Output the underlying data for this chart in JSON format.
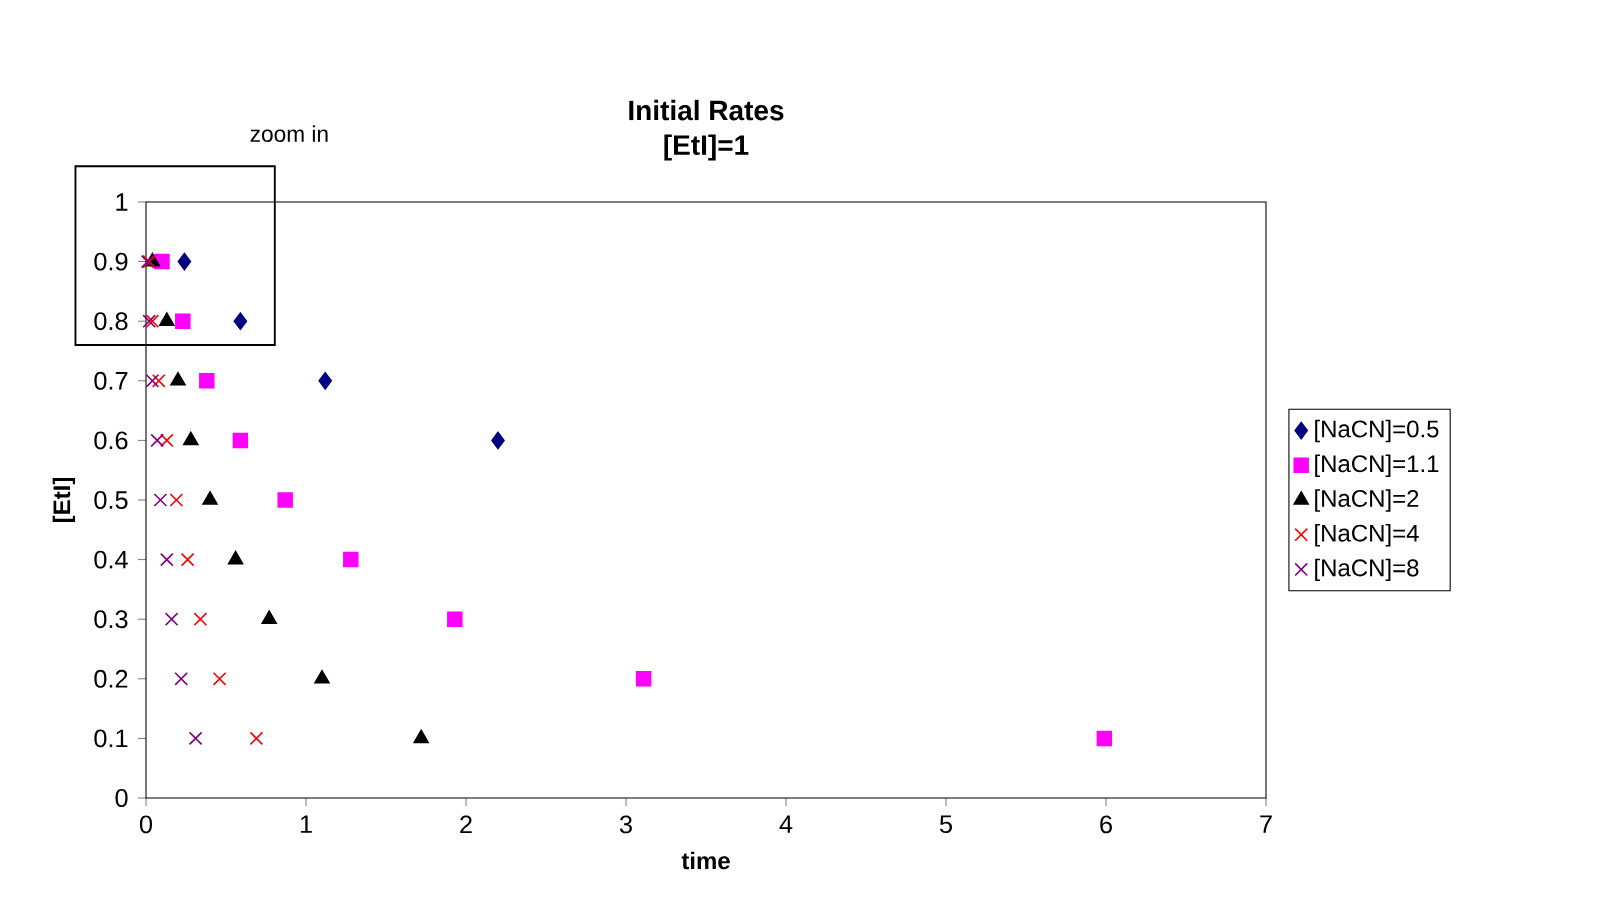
{
  "chart_data": {
    "type": "scatter",
    "title": "Initial Rates",
    "subtitle": "[EtI]=1",
    "xlabel": "time",
    "ylabel": "[EtI]",
    "annotations": [
      "zoom in"
    ],
    "xlim": [
      0,
      7
    ],
    "ylim": [
      0,
      1
    ],
    "xticks": [
      0,
      1,
      2,
      3,
      4,
      5,
      6,
      7
    ],
    "yticks": [
      0,
      0.1,
      0.2,
      0.3,
      0.4,
      0.5,
      0.6,
      0.7,
      0.8,
      0.9,
      1
    ],
    "grid": false,
    "legend": "right",
    "series": [
      {
        "name": "[NaCN]=0.5",
        "color": "#000080",
        "marker": "diamond",
        "x": [
          0.24,
          0.59,
          1.12,
          2.2
        ],
        "values": [
          0.9,
          0.8,
          0.7,
          0.6
        ]
      },
      {
        "name": "[NaCN]=1.1",
        "color": "#ff00ff",
        "marker": "square",
        "x": [
          0.1,
          0.23,
          0.38,
          0.59,
          0.87,
          1.28,
          1.93,
          3.11,
          5.99
        ],
        "values": [
          0.9,
          0.8,
          0.7,
          0.6,
          0.5,
          0.4,
          0.3,
          0.2,
          0.1
        ]
      },
      {
        "name": "[NaCN]=2",
        "color": "#000000",
        "marker": "triangle",
        "x": [
          0.04,
          0.13,
          0.2,
          0.28,
          0.4,
          0.56,
          0.77,
          1.1,
          1.72
        ],
        "values": [
          0.9,
          0.8,
          0.7,
          0.6,
          0.5,
          0.4,
          0.3,
          0.2,
          0.1
        ]
      },
      {
        "name": "[NaCN]=4",
        "color": "#ff0000",
        "marker": "cross",
        "x": [
          0.02,
          0.04,
          0.08,
          0.13,
          0.19,
          0.26,
          0.34,
          0.46,
          0.69
        ],
        "values": [
          0.9,
          0.8,
          0.7,
          0.6,
          0.5,
          0.4,
          0.3,
          0.2,
          0.1
        ]
      },
      {
        "name": "[NaCN]=8",
        "color": "#800080",
        "marker": "cross",
        "x": [
          0.01,
          0.02,
          0.04,
          0.07,
          0.09,
          0.13,
          0.16,
          0.22,
          0.31
        ],
        "values": [
          0.9,
          0.8,
          0.7,
          0.6,
          0.5,
          0.4,
          0.3,
          0.2,
          0.1
        ]
      }
    ]
  }
}
